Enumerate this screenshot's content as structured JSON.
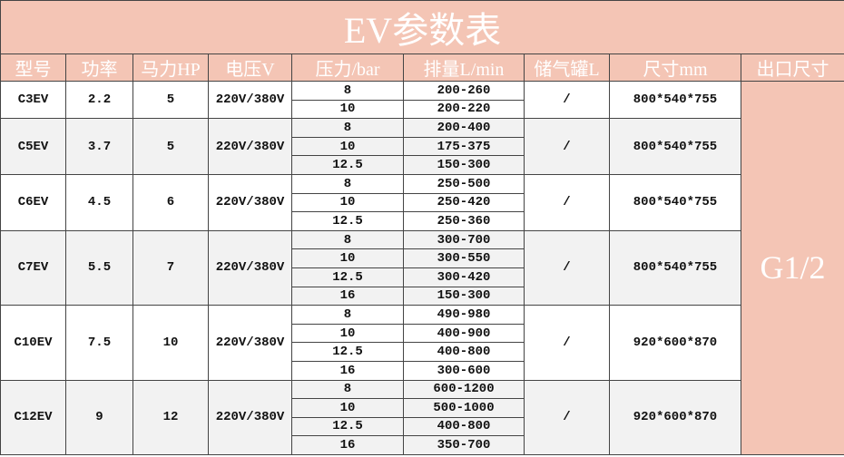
{
  "title": "EV参数表",
  "headers": [
    "型号",
    "功率",
    "马力HP",
    "电压V",
    "压力/bar",
    "排量L/min",
    "储气罐L",
    "尺寸mm",
    "出口尺寸"
  ],
  "outlet": "G1/2",
  "colors": {
    "header_bg": "#f4c5b5",
    "row_alt": "#f2f2f2"
  },
  "models": [
    {
      "model": "C3EV",
      "power": "2.2",
      "hp": "5",
      "voltage": "220V/380V",
      "tank": "/",
      "size": "800*540*755",
      "specs": [
        {
          "pressure": "8",
          "flow": "200-260"
        },
        {
          "pressure": "10",
          "flow": "200-220"
        }
      ]
    },
    {
      "model": "C5EV",
      "power": "3.7",
      "hp": "5",
      "voltage": "220V/380V",
      "tank": "/",
      "size": "800*540*755",
      "specs": [
        {
          "pressure": "8",
          "flow": "200-400"
        },
        {
          "pressure": "10",
          "flow": "175-375"
        },
        {
          "pressure": "12.5",
          "flow": "150-300"
        }
      ]
    },
    {
      "model": "C6EV",
      "power": "4.5",
      "hp": "6",
      "voltage": "220V/380V",
      "tank": "/",
      "size": "800*540*755",
      "specs": [
        {
          "pressure": "8",
          "flow": "250-500"
        },
        {
          "pressure": "10",
          "flow": "250-420"
        },
        {
          "pressure": "12.5",
          "flow": "250-360"
        }
      ]
    },
    {
      "model": "C7EV",
      "power": "5.5",
      "hp": "7",
      "voltage": "220V/380V",
      "tank": "/",
      "size": "800*540*755",
      "specs": [
        {
          "pressure": "8",
          "flow": "300-700"
        },
        {
          "pressure": "10",
          "flow": "300-550"
        },
        {
          "pressure": "12.5",
          "flow": "300-420"
        },
        {
          "pressure": "16",
          "flow": "150-300"
        }
      ]
    },
    {
      "model": "C10EV",
      "power": "7.5",
      "hp": "10",
      "voltage": "220V/380V",
      "tank": "/",
      "size": "920*600*870",
      "specs": [
        {
          "pressure": "8",
          "flow": "490-980"
        },
        {
          "pressure": "10",
          "flow": "400-900"
        },
        {
          "pressure": "12.5",
          "flow": "400-800"
        },
        {
          "pressure": "16",
          "flow": "300-600"
        }
      ]
    },
    {
      "model": "C12EV",
      "power": "9",
      "hp": "12",
      "voltage": "220V/380V",
      "tank": "/",
      "size": "920*600*870",
      "specs": [
        {
          "pressure": "8",
          "flow": "600-1200"
        },
        {
          "pressure": "10",
          "flow": "500-1000"
        },
        {
          "pressure": "12.5",
          "flow": "400-800"
        },
        {
          "pressure": "16",
          "flow": "350-700"
        }
      ]
    }
  ]
}
